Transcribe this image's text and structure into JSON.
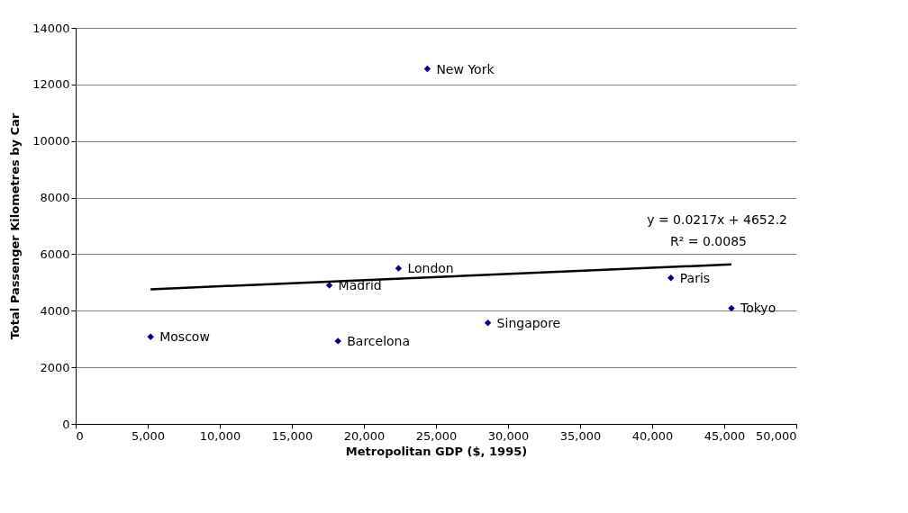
{
  "chart_data": {
    "type": "scatter",
    "xlabel": "Metropolitan GDP ($, 1995)",
    "ylabel": "Total Passenger Kilometres by Car",
    "series": [
      {
        "color": "#000080",
        "marker": "diamond",
        "x": [
          5200,
          17600,
          18200,
          22400,
          24400,
          28600,
          41300,
          45500
        ],
        "values": [
          3080,
          4900,
          2930,
          5500,
          12550,
          3570,
          5160,
          4090
        ]
      },
      {
        "type": "line",
        "color": "#000000",
        "line_style": "solid",
        "x": [
          5200,
          45500
        ],
        "values": [
          4760,
          5640
        ]
      }
    ],
    "annotations": [
      {
        "text": "Moscow",
        "x": 5200,
        "y": 3080
      },
      {
        "text": "Madrid",
        "x": 17600,
        "y": 4900
      },
      {
        "text": "Barcelona",
        "x": 18200,
        "y": 2930
      },
      {
        "text": "London",
        "x": 22400,
        "y": 5500
      },
      {
        "text": "New York",
        "x": 24400,
        "y": 12550
      },
      {
        "text": "Singapore",
        "x": 28600,
        "y": 3570
      },
      {
        "text": "Paris",
        "x": 41300,
        "y": 5160
      },
      {
        "text": "Tokyo",
        "x": 45500,
        "y": 4090
      },
      "y = 0.0217x + 4652.2",
      "R² = 0.0085"
    ],
    "xlim": [
      0,
      50000
    ],
    "ylim": [
      0,
      14000
    ],
    "xticks": [
      0,
      {
        "value": 5000,
        "label": "5,000"
      },
      {
        "value": 10000,
        "label": "10,000"
      },
      {
        "value": 15000,
        "label": "15,000"
      },
      {
        "value": 20000,
        "label": "20,000"
      },
      {
        "value": 25000,
        "label": "25,000"
      },
      {
        "value": 30000,
        "label": "30,000"
      },
      {
        "value": 35000,
        "label": "35,000"
      },
      {
        "value": 40000,
        "label": "40,000"
      },
      {
        "value": 45000,
        "label": "45,000"
      },
      {
        "value": 50000,
        "label": "50,000"
      }
    ],
    "yticks": [
      0,
      2000,
      4000,
      6000,
      8000,
      10000,
      12000,
      14000
    ],
    "grid": "y",
    "legend": false
  }
}
